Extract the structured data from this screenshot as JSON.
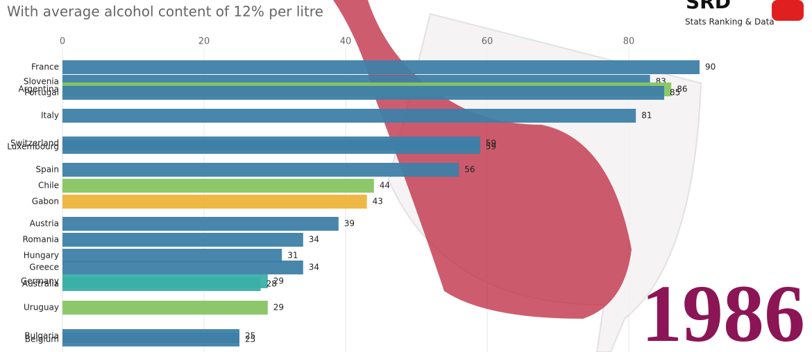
{
  "chart_data": {
    "type": "hbar",
    "subtitle": "With average alcohol content of 12% per litre",
    "logo": "SRD",
    "logo_tagline": "Stats Ranking & Data",
    "year_label": "1986",
    "categories": [
      "France",
      "Slovenia",
      "Argentina",
      "Portugal",
      "Italy",
      "Switzerland",
      "Luxembourg",
      "Spain",
      "Chile",
      "Gabon",
      "Austria",
      "Romania",
      "Hungary",
      "Greece",
      "Germany",
      "Australia",
      "Uruguay",
      "Bulgaria",
      "Belgium"
    ],
    "values": [
      90,
      83,
      86,
      85,
      81,
      59,
      59,
      56,
      44,
      43,
      39,
      34,
      31,
      34,
      29,
      28,
      29,
      25,
      25
    ],
    "colors": [
      "#3e7fa8",
      "#3e7fa8",
      "#86c561",
      "#3e7fa8",
      "#3e7fa8",
      "#3e7fa8",
      "#3e7fa8",
      "#3e7fa8",
      "#86c561",
      "#eeb33a",
      "#3e7fa8",
      "#3e7fa8",
      "#3e7fa8",
      "#3e7fa8",
      "#3bb0a6",
      "#3bb0a6",
      "#86c561",
      "#3e7fa8",
      "#3e7fa8"
    ],
    "xlim": [
      0,
      100
    ],
    "xticks": [
      0,
      20,
      40,
      60,
      80
    ],
    "grid": true
  }
}
